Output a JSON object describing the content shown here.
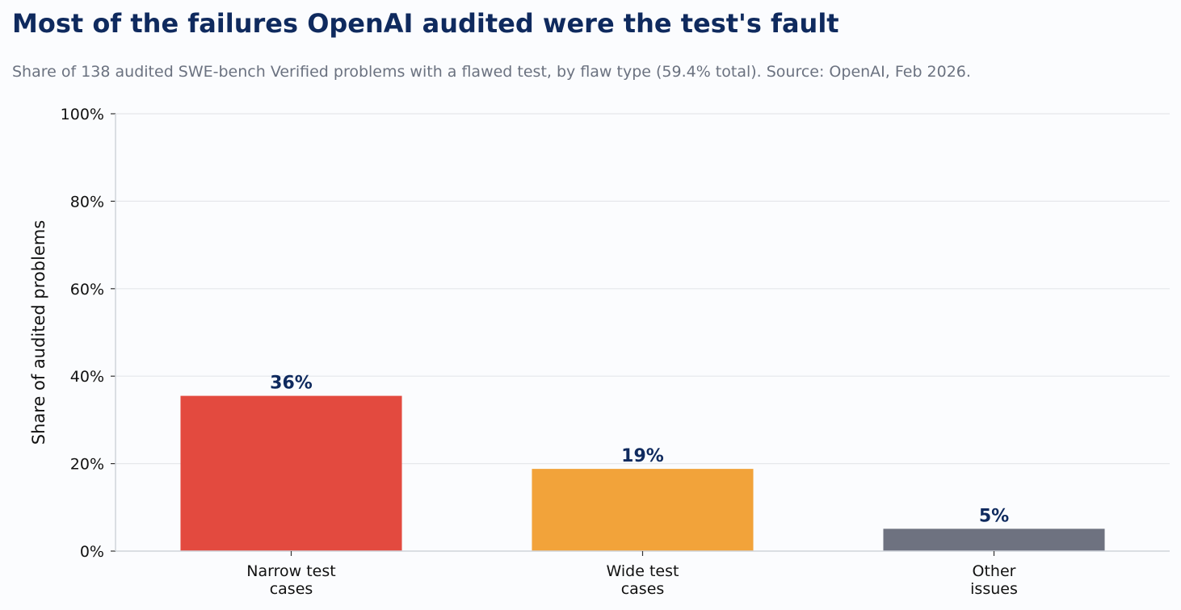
{
  "header": {
    "title": "Most of the failures OpenAI audited were the test's fault",
    "subtitle": "Share of 138 audited SWE-bench Verified problems with a flawed test, by flaw type (59.4% total). Source: OpenAI, Feb 2026."
  },
  "chart_data": {
    "type": "bar",
    "categories": [
      [
        "Narrow test",
        "cases"
      ],
      [
        "Wide test",
        "cases"
      ],
      [
        "Other",
        "issues"
      ]
    ],
    "values": [
      35.5,
      18.8,
      5.1
    ],
    "data_labels": [
      "36%",
      "19%",
      "5%"
    ],
    "bar_colors": [
      "#e34a3f",
      "#f2a33a",
      "#6e7280"
    ],
    "ylabel": "Share of audited problems",
    "ylim": [
      0,
      100
    ],
    "yticks": [
      0,
      20,
      40,
      60,
      80,
      100
    ],
    "ytick_labels": [
      "0%",
      "20%",
      "40%",
      "60%",
      "80%",
      "100%"
    ],
    "grid": true,
    "legend": false
  },
  "colors": {
    "title": "#0f2a5e",
    "subtitle": "#6b7280",
    "data_label": "#0f2a5e",
    "grid": "#e5e7eb",
    "axis": "#cfd3da",
    "background": "#fbfcfe"
  }
}
